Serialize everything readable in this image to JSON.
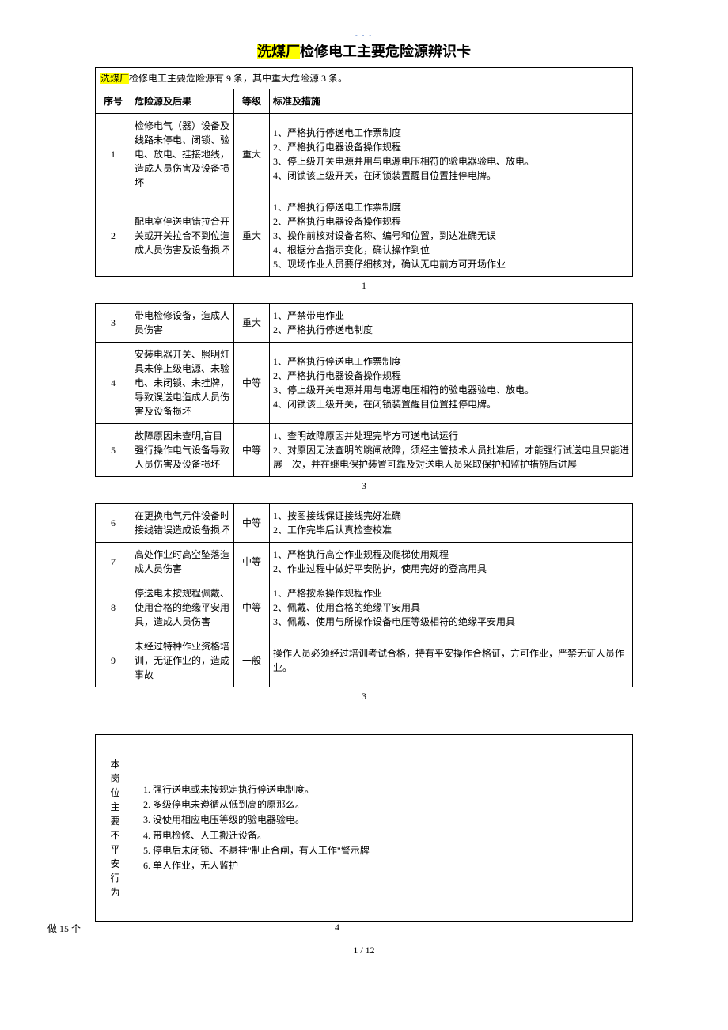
{
  "top_dashes": "- - -",
  "title_hl": "洗煤厂",
  "title_rest": "检修电工主要危险源辨识卡",
  "intro_hl": "洗煤厂",
  "intro_rest": "检修电工主要危险源有 9 条，其中重大危险源 3 条。",
  "headers": {
    "no": "序号",
    "hazard": "危险源及后果",
    "level": "等级",
    "measure": "标准及措施"
  },
  "t1": {
    "rows": [
      {
        "no": "1",
        "hazard": "检修电气（器）设备及线路未停电、闭锁、验电、放电、挂接地线，造成人员伤害及设备损坏",
        "level": "重大",
        "measure": "1、严格执行停送电工作票制度\n2、严格执行电器设备操作规程\n3、停上级开关电源并用与电源电压相符的验电器验电、放电。\n4、闭锁该上级开关，在闭锁装置醒目位置挂停电牌。"
      },
      {
        "no": "2",
        "hazard": "配电室停送电错拉合开关或开关拉合不到位造成人员伤害及设备损坏",
        "level": "重大",
        "measure": "1、严格执行停送电工作票制度\n2、严格执行电器设备操作规程\n3、操作前核对设备名称、编号和位置，到达准确无误\n4、根据分合指示变化，确认操作到位\n5、现场作业人员要仔细核对，确认无电前方可开场作业"
      }
    ],
    "page": "1"
  },
  "t2": {
    "rows": [
      {
        "no": "3",
        "hazard": "带电检修设备，造成人员伤害",
        "level": "重大",
        "measure": "1、严禁带电作业\n2、严格执行停送电制度"
      },
      {
        "no": "4",
        "hazard": "安装电器开关、照明灯具未停上级电源、未验电、未闭锁、未挂牌，导致误送电造成人员伤害及设备损坏",
        "level": "中等",
        "measure": "1、严格执行停送电工作票制度\n2、严格执行电器设备操作规程\n3、停上级开关电源并用与电源电压相符的验电器验电、放电。\n4、闭锁该上级开关，在闭锁装置醒目位置挂停电牌。"
      },
      {
        "no": "5",
        "hazard": "故障原因未查明,盲目强行操作电气设备导致人员伤害及设备损坏",
        "level": "中等",
        "measure": "1、查明故障原因并处理完毕方可送电试运行\n2、对原因无法查明的跳闸故障，须经主管技术人员批准后，才能强行试送电且只能进展一次，并在继电保护装置可靠及对送电人员采取保护和监护措施后进展"
      }
    ],
    "page": "3"
  },
  "t3": {
    "rows": [
      {
        "no": "6",
        "hazard": "在更换电气元件设备时接线错误造成设备损坏",
        "level": "中等",
        "measure": "1、按图接线保证接线完好准确\n2、工作完毕后认真检查校准"
      },
      {
        "no": "7",
        "hazard": "高处作业时高空坠落造成人员伤害",
        "level": "中等",
        "measure": "1、严格执行高空作业规程及爬梯使用规程\n2、作业过程中做好平安防护，使用完好的登高用具"
      },
      {
        "no": "8",
        "hazard": "停送电未按规程佩戴、使用合格的绝缘平安用具，造成人员伤害",
        "level": "中等",
        "measure": "1、严格按照操作规程作业\n2、佩戴、使用合格的绝缘平安用具\n3、佩戴、使用与所操作设备电压等级相符的绝缘平安用具"
      },
      {
        "no": "9",
        "hazard": "未经过特种作业资格培训，无证作业的，造成事故",
        "level": "一般",
        "measure": "操作人员必须经过培训考试合格，持有平安操作合格证，方可作业，严禁无证人员作业。"
      }
    ],
    "page": "3"
  },
  "unsafe": {
    "label": "本岗位主要不平安行为",
    "items": [
      "1. 强行送电或未按规定执行停送电制度。",
      "2. 多级停电未遵循从低到高的原那么。",
      "3. 没使用相应电压等级的验电器验电。",
      "4. 带电检修、人工搬迁设备。",
      "5. 停电后未闭锁、不悬挂\"制止合闸，有人工作\"警示牌",
      "6. 单人作业，无人监护"
    ]
  },
  "footer_left": "做 15 个",
  "footer_page": "4",
  "page_total": "1 / 12"
}
